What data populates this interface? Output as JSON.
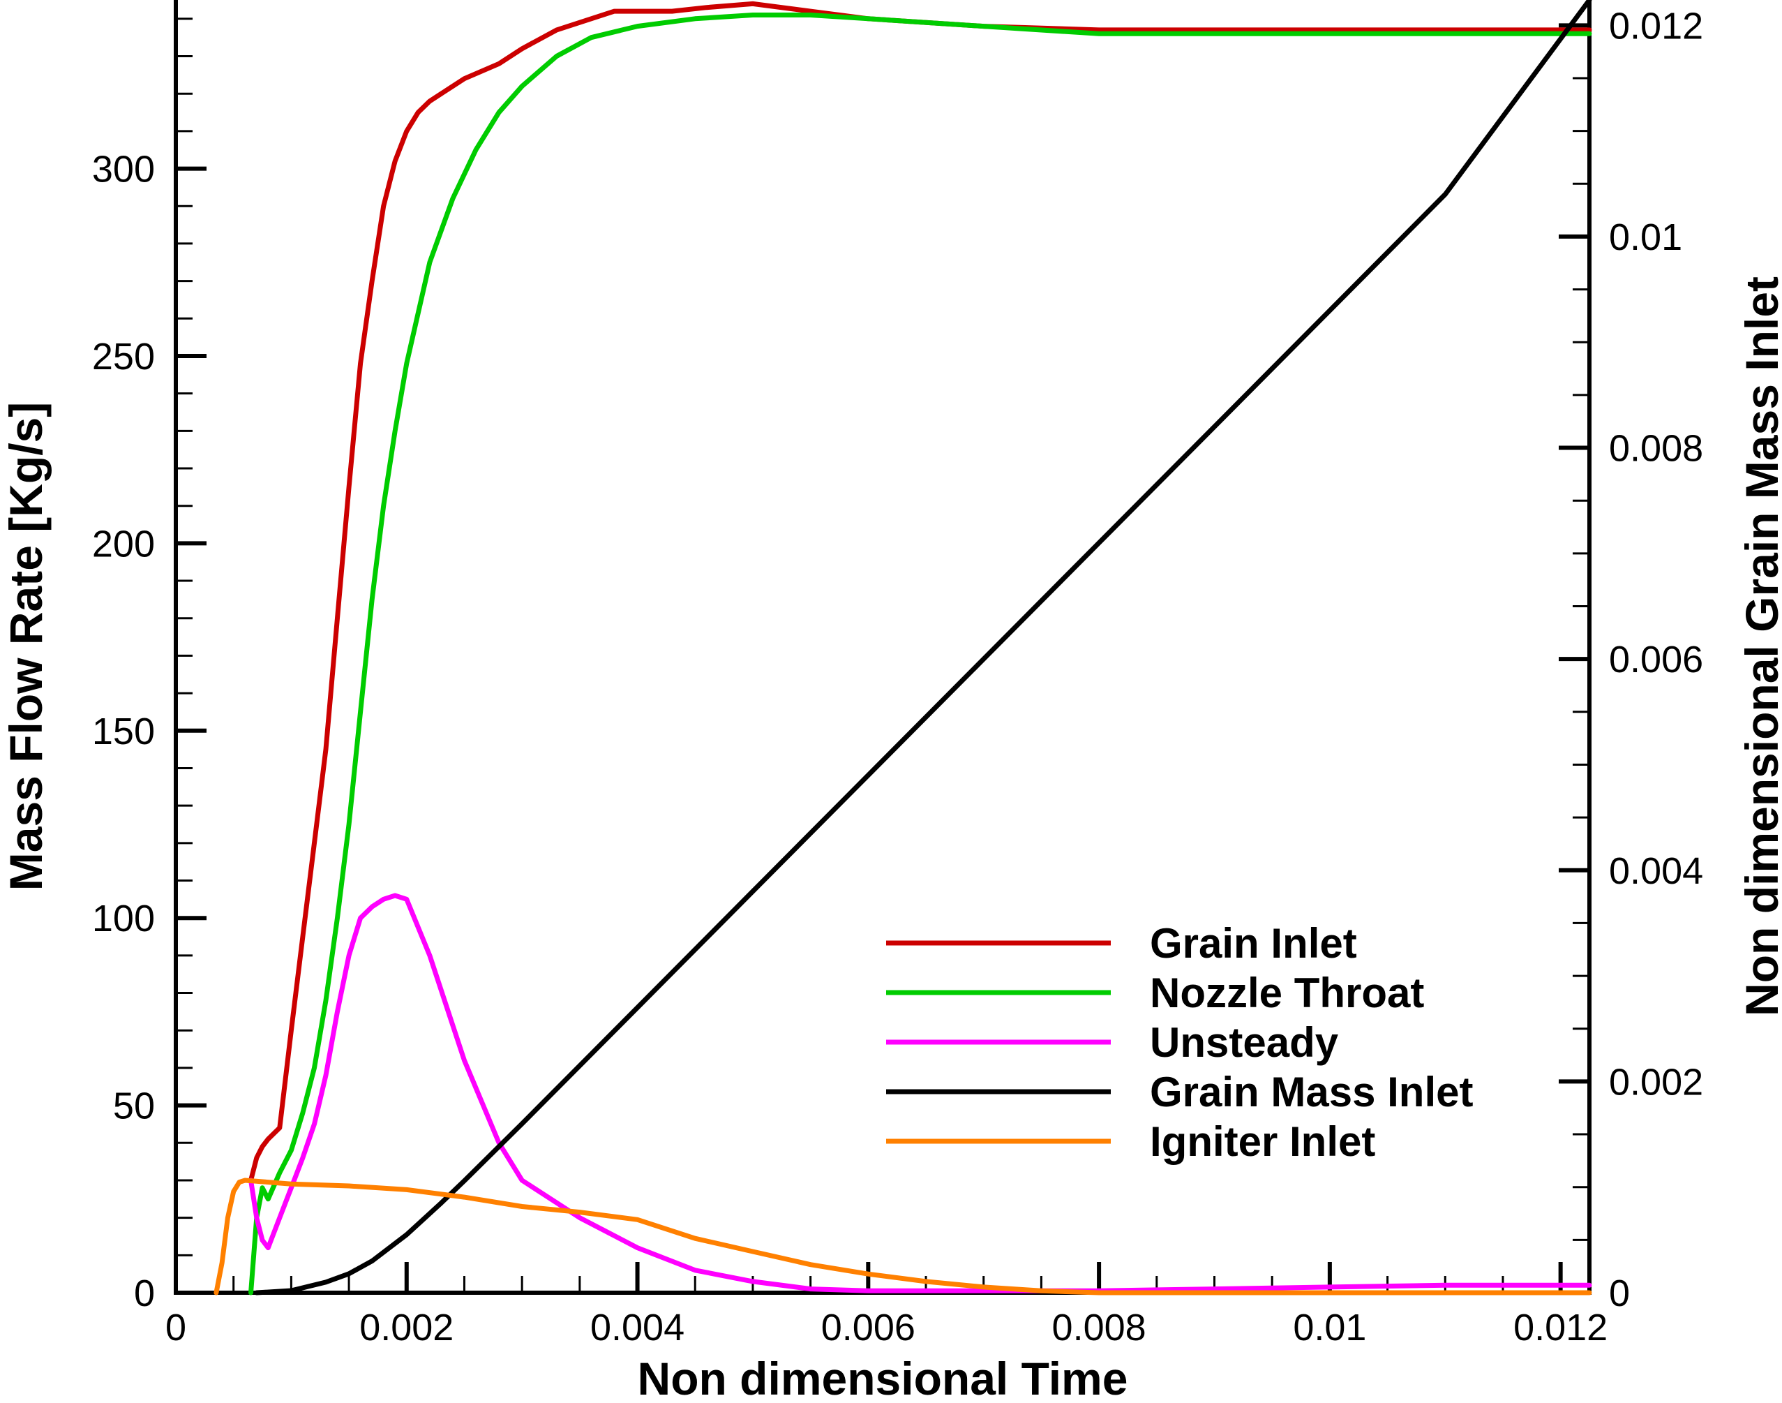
{
  "chart_data": {
    "type": "line",
    "xlabel": "Non dimensional Time",
    "ylabel": "Mass Flow Rate [Kg/s]",
    "y2label": "Non dimensional Grain Mass Inlet",
    "xlim": [
      0,
      0.01225
    ],
    "ylim": [
      0,
      345
    ],
    "y2lim": [
      0,
      0.01224
    ],
    "x_ticks": [
      0,
      0.002,
      0.004,
      0.006,
      0.008,
      0.01,
      0.012
    ],
    "x_tick_labels": [
      "0",
      "0.002",
      "0.004",
      "0.006",
      "0.008",
      "0.01",
      "0.012"
    ],
    "y_ticks": [
      0,
      50,
      100,
      150,
      200,
      250,
      300
    ],
    "y_tick_labels": [
      "0",
      "50",
      "100",
      "150",
      "200",
      "250",
      "300"
    ],
    "y2_ticks": [
      0,
      0.002,
      0.004,
      0.006,
      0.008,
      0.01,
      0.012
    ],
    "y2_tick_labels": [
      "0",
      "0.002",
      "0.004",
      "0.006",
      "0.008",
      "0.01",
      "0.012"
    ],
    "grid": false,
    "legend_position": "lower-right",
    "series": [
      {
        "name": "Grain Inlet",
        "color": "#cc0000",
        "axis": "left",
        "x": [
          0.00065,
          0.0007,
          0.00075,
          0.0008,
          0.0009,
          0.001,
          0.0011,
          0.0012,
          0.0013,
          0.0014,
          0.0015,
          0.0016,
          0.0017,
          0.0018,
          0.0019,
          0.002,
          0.0021,
          0.0022,
          0.0023,
          0.0025,
          0.0028,
          0.003,
          0.0033,
          0.0035,
          0.0038,
          0.004,
          0.0043,
          0.0046,
          0.005,
          0.0055,
          0.006,
          0.007,
          0.008,
          0.009,
          0.01,
          0.011,
          0.01225
        ],
        "y": [
          30,
          36,
          39,
          41,
          44,
          70,
          95,
          120,
          145,
          180,
          215,
          248,
          270,
          290,
          302,
          310,
          315,
          318,
          320,
          324,
          328,
          332,
          337,
          339,
          342,
          342,
          342,
          343,
          344,
          342,
          340,
          338,
          337,
          337,
          337,
          337,
          337
        ]
      },
      {
        "name": "Nozzle Throat",
        "color": "#00cc00",
        "axis": "left",
        "x": [
          0.00065,
          0.0007,
          0.00075,
          0.0008,
          0.0009,
          0.001,
          0.0011,
          0.0012,
          0.0013,
          0.0014,
          0.0015,
          0.0016,
          0.0017,
          0.0018,
          0.0019,
          0.002,
          0.0022,
          0.0024,
          0.0026,
          0.0028,
          0.003,
          0.0033,
          0.0036,
          0.004,
          0.0045,
          0.005,
          0.0055,
          0.006,
          0.007,
          0.008,
          0.009,
          0.01,
          0.011,
          0.01225
        ],
        "y": [
          0,
          20,
          28,
          25,
          32,
          38,
          48,
          60,
          78,
          100,
          125,
          155,
          185,
          210,
          230,
          248,
          275,
          292,
          305,
          315,
          322,
          330,
          335,
          338,
          340,
          341,
          341,
          340,
          338,
          336,
          336,
          336,
          336,
          336
        ]
      },
      {
        "name": "Unsteady",
        "color": "#ff00ff",
        "axis": "left",
        "x": [
          0.00065,
          0.0007,
          0.00075,
          0.0008,
          0.0009,
          0.001,
          0.0011,
          0.0012,
          0.0013,
          0.0014,
          0.0015,
          0.0016,
          0.0017,
          0.0018,
          0.0019,
          0.002,
          0.0022,
          0.0025,
          0.0028,
          0.003,
          0.0035,
          0.004,
          0.0045,
          0.005,
          0.0055,
          0.006,
          0.007,
          0.008,
          0.009,
          0.01,
          0.011,
          0.01225
        ],
        "y": [
          30,
          20,
          14,
          12,
          20,
          28,
          36,
          45,
          58,
          75,
          90,
          100,
          103,
          105,
          106,
          105,
          90,
          62,
          40,
          30,
          20,
          12,
          6,
          3,
          1,
          0.5,
          0.5,
          0.5,
          1,
          1.5,
          2,
          2
        ]
      },
      {
        "name": "Grain Mass Inlet",
        "color": "#000000",
        "axis": "right",
        "x": [
          0.0007,
          0.001,
          0.0013,
          0.0015,
          0.0017,
          0.002,
          0.0023,
          0.0025,
          0.003,
          0.004,
          0.005,
          0.006,
          0.007,
          0.008,
          0.009,
          0.01,
          0.011,
          0.01225
        ],
        "y": [
          0,
          2e-05,
          0.0001,
          0.00018,
          0.0003,
          0.00055,
          0.00085,
          0.00106,
          0.0016,
          0.0027,
          0.0038,
          0.0049,
          0.006,
          0.0071,
          0.0082,
          0.0093,
          0.0104,
          0.01224
        ]
      },
      {
        "name": "Igniter Inlet",
        "color": "#ff8000",
        "axis": "left",
        "x": [
          0.00035,
          0.0004,
          0.00045,
          0.0005,
          0.00055,
          0.0006,
          0.0008,
          0.001,
          0.0015,
          0.002,
          0.0025,
          0.003,
          0.0035,
          0.004,
          0.0045,
          0.005,
          0.0055,
          0.006,
          0.0065,
          0.007,
          0.0075,
          0.008,
          0.009,
          0.01,
          0.011,
          0.01225
        ],
        "y": [
          0,
          8,
          20,
          27,
          29.5,
          30,
          29.5,
          29,
          28.5,
          27.5,
          25.5,
          23,
          21.5,
          19.5,
          14.5,
          11,
          7.5,
          5,
          3,
          1.5,
          0.5,
          0,
          0,
          0,
          0,
          0
        ]
      }
    ]
  }
}
